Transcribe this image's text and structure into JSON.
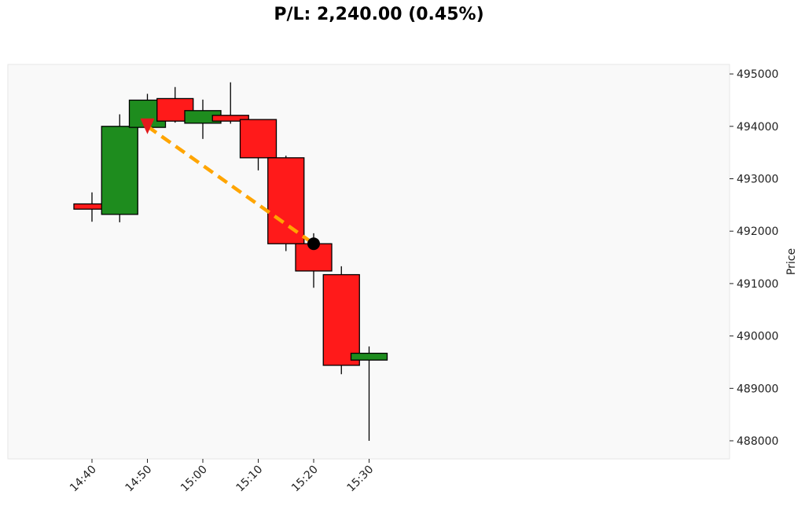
{
  "chart_data": {
    "type": "candlestick",
    "title": "P/L: 2,240.00 (0.45%)",
    "ylabel": "Price",
    "xlabel": "",
    "ylim": [
      487700,
      495200
    ],
    "yticks": [
      488000,
      489000,
      490000,
      491000,
      492000,
      493000,
      494000,
      495000
    ],
    "ytick_labels": [
      "488000",
      "489000",
      "490000",
      "491000",
      "492000",
      "493000",
      "494000",
      "495000"
    ],
    "xticks": [
      "14:40",
      "14:50",
      "15:00",
      "15:10",
      "15:20",
      "15:30"
    ],
    "grid": false,
    "colors": {
      "up": "#1e8c1e",
      "down": "#ff1a1a",
      "trade_line": "#ffa500",
      "entry_marker": "#e31a1c",
      "exit_marker": "#000000",
      "plot_bg": "#f9f9f9"
    },
    "candles": [
      {
        "time": "14:40",
        "open": 492520,
        "high": 492740,
        "low": 492180,
        "close": 492420
      },
      {
        "time": "14:45",
        "open": 492320,
        "high": 494230,
        "low": 492170,
        "close": 494000
      },
      {
        "time": "14:50",
        "open": 493980,
        "high": 494620,
        "low": 493930,
        "close": 494500
      },
      {
        "time": "14:55",
        "open": 494530,
        "high": 494750,
        "low": 494070,
        "close": 494100
      },
      {
        "time": "15:00",
        "open": 494060,
        "high": 494510,
        "low": 493760,
        "close": 494300
      },
      {
        "time": "15:05",
        "open": 494210,
        "high": 494840,
        "low": 494050,
        "close": 494100
      },
      {
        "time": "15:10",
        "open": 494130,
        "high": 494130,
        "low": 493160,
        "close": 493400
      },
      {
        "time": "15:15",
        "open": 493400,
        "high": 493440,
        "low": 491620,
        "close": 491760
      },
      {
        "time": "15:20",
        "open": 491760,
        "high": 491960,
        "low": 490920,
        "close": 491240
      },
      {
        "time": "15:25",
        "open": 491170,
        "high": 491330,
        "low": 489270,
        "close": 489440
      },
      {
        "time": "15:30",
        "open": 489540,
        "high": 489800,
        "low": 488000,
        "close": 489670
      }
    ],
    "trade": {
      "entry": {
        "time": "14:50",
        "price": 494000,
        "marker": "down-triangle"
      },
      "exit": {
        "time": "15:20",
        "price": 491760,
        "marker": "circle"
      }
    }
  }
}
